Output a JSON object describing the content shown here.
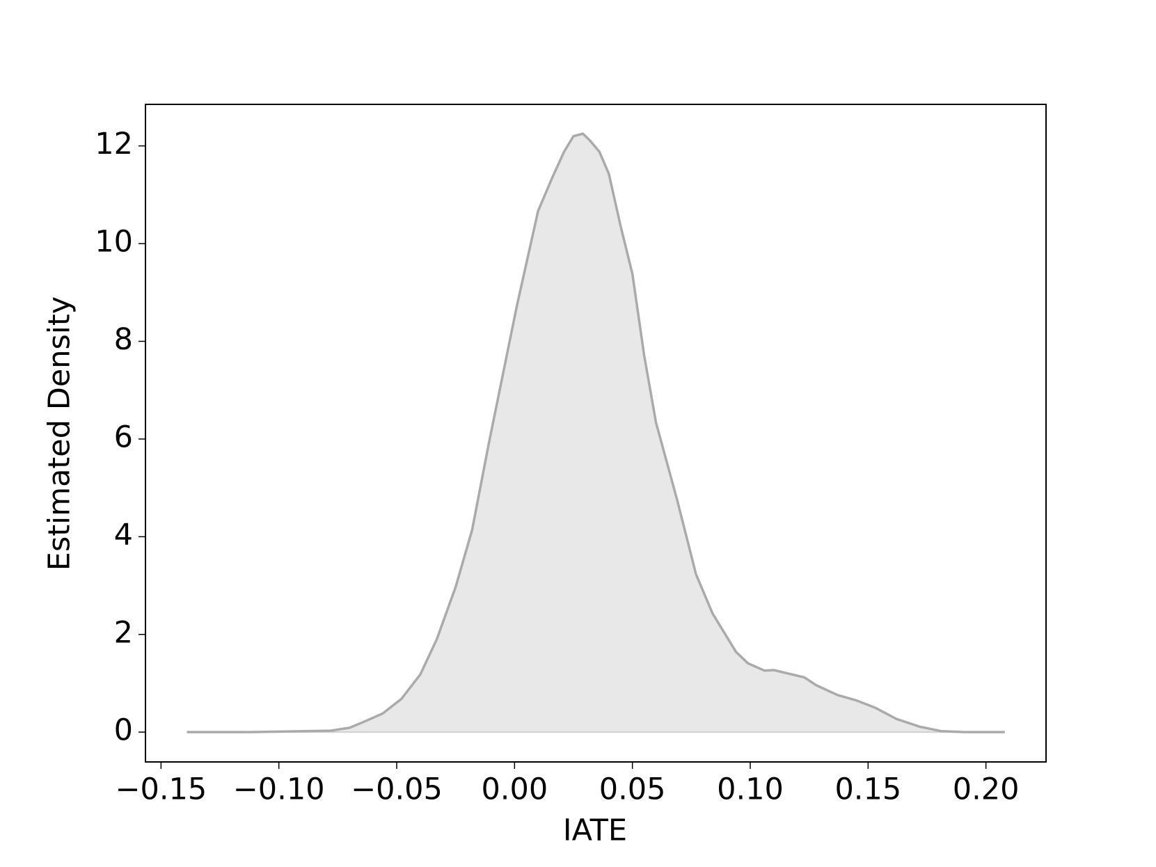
{
  "chart_data": {
    "type": "area",
    "xlabel": "IATE",
    "ylabel": "Estimated Density",
    "fill_color": "#e8e8e8",
    "line_color": "#aaaaaa",
    "x": [
      -0.139,
      -0.113,
      -0.078,
      -0.07,
      -0.064,
      -0.056,
      -0.048,
      -0.04,
      -0.033,
      -0.025,
      -0.018,
      -0.011,
      0.001,
      0.01,
      0.016,
      0.021,
      0.025,
      0.029,
      0.032,
      0.036,
      0.04,
      0.045,
      0.05,
      0.055,
      0.06,
      0.069,
      0.077,
      0.084,
      0.094,
      0.099,
      0.106,
      0.11,
      0.123,
      0.128,
      0.137,
      0.145,
      0.153,
      0.162,
      0.172,
      0.181,
      0.191,
      0.208
    ],
    "values": [
      0,
      0,
      0.03,
      0.09,
      0.21,
      0.38,
      0.68,
      1.18,
      1.9,
      2.97,
      4.14,
      5.89,
      8.73,
      10.67,
      11.35,
      11.88,
      12.2,
      12.25,
      12.11,
      11.88,
      11.43,
      10.36,
      9.38,
      7.71,
      6.34,
      4.75,
      3.23,
      2.43,
      1.64,
      1.41,
      1.26,
      1.27,
      1.12,
      0.96,
      0.76,
      0.65,
      0.5,
      0.27,
      0.11,
      0.02,
      0,
      0
    ],
    "xlim": [
      -0.1566,
      0.2255
    ],
    "ylim": [
      -0.61,
      12.85
    ],
    "xticks": [
      {
        "value": -0.15,
        "label": "−0.15"
      },
      {
        "value": -0.1,
        "label": "−0.10"
      },
      {
        "value": -0.05,
        "label": "−0.05"
      },
      {
        "value": 0,
        "label": "0.00"
      },
      0.05,
      {
        "value": 0.1,
        "label": "0.10"
      },
      0.15,
      {
        "value": 0.2,
        "label": "0.20"
      }
    ],
    "yticks": [
      0,
      2,
      4,
      6,
      8,
      10,
      12
    ]
  }
}
